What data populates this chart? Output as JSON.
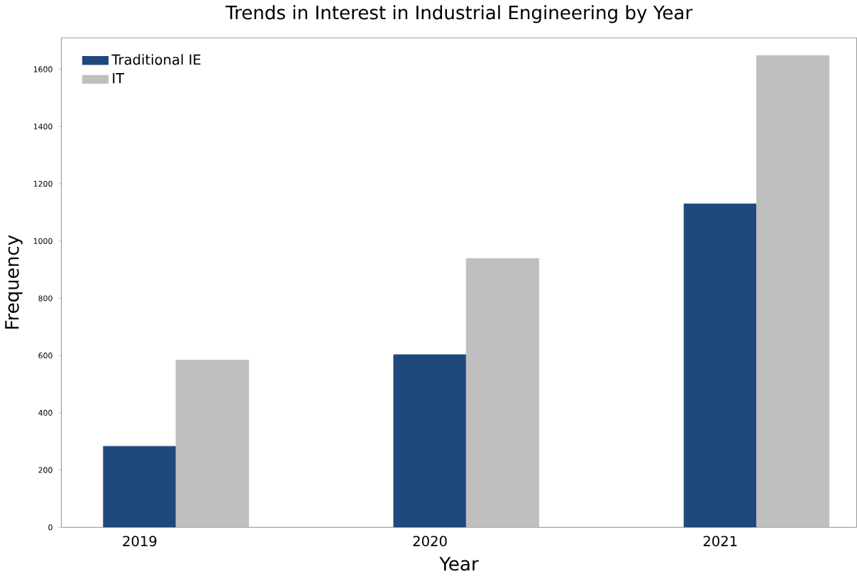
{
  "chart_data": {
    "type": "bar",
    "title": "Trends in Interest in Industrial Engineering by Year",
    "xlabel": "Year",
    "ylabel": "Frequency",
    "categories": [
      "2019",
      "2020",
      "2021"
    ],
    "series": [
      {
        "name": "Traditional IE",
        "color": "#1f497d",
        "values": [
          283,
          603,
          1130
        ]
      },
      {
        "name": "IT",
        "color": "#bfbfbf",
        "values": [
          584,
          939,
          1648
        ]
      }
    ],
    "ylim": [
      0,
      1710
    ],
    "yticks": [
      0,
      200,
      400,
      600,
      800,
      1000,
      1200,
      1400,
      1600
    ],
    "grid": false,
    "legend": "top left"
  }
}
